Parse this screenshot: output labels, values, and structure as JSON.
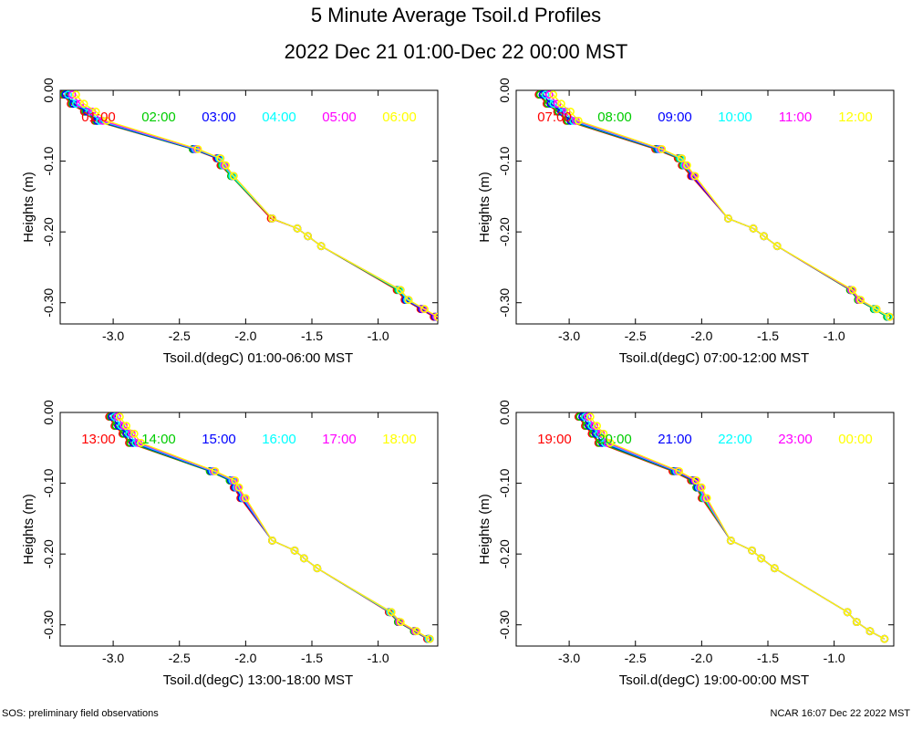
{
  "title": "5 Minute Average Tsoil.d Profiles",
  "subtitle": "2022 Dec 21 01:00-Dec 22 00:00 MST",
  "footer_left": "SOS: preliminary field observations",
  "footer_right": "NCAR 16:07 Dec 22 2022 MST",
  "chart_data": [
    {
      "type": "line",
      "xlabel": "Tsoil.d(degC) 01:00-06:00 MST",
      "ylabel": "Heights (m)",
      "xlim": [
        -3.4,
        -0.55
      ],
      "ylim": [
        -0.33,
        0.0
      ],
      "x_ticks": [
        "-3.0",
        "-2.5",
        "-2.0",
        "-1.5",
        "-1.0"
      ],
      "y_ticks": [
        "0.00",
        "-0.10",
        "-0.20",
        "-0.30"
      ],
      "heights": [
        -0.006,
        -0.019,
        -0.03,
        -0.043,
        -0.083,
        -0.096,
        -0.106,
        -0.121,
        -0.181,
        -0.195,
        -0.206,
        -0.22,
        -0.282,
        -0.296,
        -0.309,
        -0.32
      ],
      "series": [
        {
          "name": "01:00",
          "color": "#ff0000",
          "values": [
            -3.38,
            -3.32,
            -3.22,
            -3.14,
            -2.4,
            -2.22,
            -2.19,
            -2.11,
            -1.81,
            -1.61,
            -1.53,
            -1.43,
            -0.86,
            -0.8,
            -0.68,
            -0.58
          ]
        },
        {
          "name": "02:00",
          "color": "#00cc00",
          "values": [
            -3.37,
            -3.31,
            -3.21,
            -3.13,
            -2.4,
            -2.21,
            -2.18,
            -2.11,
            -1.8,
            -1.61,
            -1.53,
            -1.43,
            -0.85,
            -0.79,
            -0.67,
            -0.57
          ]
        },
        {
          "name": "03:00",
          "color": "#0000ff",
          "values": [
            -3.36,
            -3.3,
            -3.2,
            -3.12,
            -2.39,
            -2.21,
            -2.17,
            -2.1,
            -1.8,
            -1.61,
            -1.53,
            -1.43,
            -0.84,
            -0.79,
            -0.67,
            -0.57
          ]
        },
        {
          "name": "04:00",
          "color": "#00ffff",
          "values": [
            -3.34,
            -3.28,
            -3.18,
            -3.1,
            -2.38,
            -2.2,
            -2.17,
            -2.1,
            -1.8,
            -1.61,
            -1.53,
            -1.43,
            -0.84,
            -0.78,
            -0.66,
            -0.56
          ]
        },
        {
          "name": "05:00",
          "color": "#ff00ff",
          "values": [
            -3.31,
            -3.25,
            -3.16,
            -3.08,
            -2.37,
            -2.19,
            -2.16,
            -2.09,
            -1.8,
            -1.61,
            -1.53,
            -1.43,
            -0.83,
            -0.77,
            -0.66,
            -0.56
          ]
        },
        {
          "name": "06:00",
          "color": "#ffff00",
          "values": [
            -3.28,
            -3.22,
            -3.13,
            -3.05,
            -2.36,
            -2.19,
            -2.15,
            -2.09,
            -1.8,
            -1.61,
            -1.53,
            -1.43,
            -0.83,
            -0.77,
            -0.65,
            -0.55
          ]
        }
      ]
    },
    {
      "type": "line",
      "xlabel": "Tsoil.d(degC) 07:00-12:00 MST",
      "ylabel": "Heights (m)",
      "xlim": [
        -3.4,
        -0.55
      ],
      "ylim": [
        -0.33,
        0.0
      ],
      "x_ticks": [
        "-3.0",
        "-2.5",
        "-2.0",
        "-1.5",
        "-1.0"
      ],
      "y_ticks": [
        "0.00",
        "-0.10",
        "-0.20",
        "-0.30"
      ],
      "heights": [
        -0.006,
        -0.019,
        -0.03,
        -0.043,
        -0.083,
        -0.096,
        -0.106,
        -0.121,
        -0.181,
        -0.195,
        -0.206,
        -0.22,
        -0.282,
        -0.296,
        -0.309,
        -0.32
      ],
      "series": [
        {
          "name": "07:00",
          "color": "#ff0000",
          "values": [
            -3.23,
            -3.17,
            -3.09,
            -3.02,
            -2.35,
            -2.18,
            -2.15,
            -2.08,
            -1.8,
            -1.61,
            -1.53,
            -1.43,
            -0.88,
            -0.82,
            -0.7,
            -0.6
          ]
        },
        {
          "name": "08:00",
          "color": "#00cc00",
          "values": [
            -3.22,
            -3.16,
            -3.08,
            -3.01,
            -2.34,
            -2.17,
            -2.14,
            -2.07,
            -1.8,
            -1.61,
            -1.53,
            -1.43,
            -0.88,
            -0.82,
            -0.7,
            -0.6
          ]
        },
        {
          "name": "09:00",
          "color": "#0000ff",
          "values": [
            -3.2,
            -3.14,
            -3.06,
            -2.99,
            -2.33,
            -2.16,
            -2.13,
            -2.07,
            -1.8,
            -1.61,
            -1.53,
            -1.43,
            -0.87,
            -0.81,
            -0.69,
            -0.59
          ]
        },
        {
          "name": "10:00",
          "color": "#00ffff",
          "values": [
            -3.18,
            -3.12,
            -3.04,
            -2.97,
            -2.32,
            -2.16,
            -2.13,
            -2.06,
            -1.8,
            -1.61,
            -1.53,
            -1.43,
            -0.87,
            -0.81,
            -0.69,
            -0.59
          ]
        },
        {
          "name": "11:00",
          "color": "#ff00ff",
          "values": [
            -3.15,
            -3.09,
            -3.02,
            -2.95,
            -2.31,
            -2.15,
            -2.12,
            -2.06,
            -1.8,
            -1.61,
            -1.53,
            -1.43,
            -0.87,
            -0.81,
            -0.68,
            -0.58
          ]
        },
        {
          "name": "12:00",
          "color": "#ffff00",
          "values": [
            -3.12,
            -3.06,
            -2.99,
            -2.93,
            -2.3,
            -2.15,
            -2.11,
            -2.05,
            -1.8,
            -1.61,
            -1.53,
            -1.43,
            -0.86,
            -0.8,
            -0.68,
            -0.58
          ]
        }
      ]
    },
    {
      "type": "line",
      "xlabel": "Tsoil.d(degC) 13:00-18:00 MST",
      "ylabel": "Heights (m)",
      "xlim": [
        -3.4,
        -0.55
      ],
      "ylim": [
        -0.33,
        0.0
      ],
      "x_ticks": [
        "-3.0",
        "-2.5",
        "-2.0",
        "-1.5",
        "-1.0"
      ],
      "y_ticks": [
        "0.00",
        "-0.10",
        "-0.20",
        "-0.30"
      ],
      "heights": [
        -0.006,
        -0.019,
        -0.03,
        -0.043,
        -0.083,
        -0.096,
        -0.106,
        -0.121,
        -0.181,
        -0.195,
        -0.206,
        -0.22,
        -0.282,
        -0.296,
        -0.309,
        -0.32
      ],
      "series": [
        {
          "name": "13:00",
          "color": "#ff0000",
          "values": [
            -3.03,
            -2.99,
            -2.93,
            -2.88,
            -2.27,
            -2.12,
            -2.09,
            -2.04,
            -1.8,
            -1.63,
            -1.56,
            -1.46,
            -0.92,
            -0.85,
            -0.73,
            -0.63
          ]
        },
        {
          "name": "14:00",
          "color": "#00cc00",
          "values": [
            -3.02,
            -2.98,
            -2.92,
            -2.87,
            -2.27,
            -2.12,
            -2.08,
            -2.03,
            -1.8,
            -1.63,
            -1.56,
            -1.46,
            -0.91,
            -0.85,
            -0.73,
            -0.62
          ]
        },
        {
          "name": "15:00",
          "color": "#0000ff",
          "values": [
            -3.01,
            -2.96,
            -2.9,
            -2.85,
            -2.26,
            -2.11,
            -2.08,
            -2.03,
            -1.8,
            -1.63,
            -1.56,
            -1.46,
            -0.91,
            -0.84,
            -0.72,
            -0.62
          ]
        },
        {
          "name": "16:00",
          "color": "#00ffff",
          "values": [
            -2.99,
            -2.94,
            -2.88,
            -2.83,
            -2.25,
            -2.1,
            -2.07,
            -2.02,
            -1.8,
            -1.63,
            -1.56,
            -1.46,
            -0.91,
            -0.84,
            -0.72,
            -0.62
          ]
        },
        {
          "name": "17:00",
          "color": "#ff00ff",
          "values": [
            -2.97,
            -2.92,
            -2.86,
            -2.81,
            -2.24,
            -2.09,
            -2.06,
            -2.01,
            -1.8,
            -1.63,
            -1.56,
            -1.46,
            -0.9,
            -0.84,
            -0.72,
            -0.61
          ]
        },
        {
          "name": "18:00",
          "color": "#ffff00",
          "values": [
            -2.95,
            -2.9,
            -2.84,
            -2.79,
            -2.23,
            -2.08,
            -2.05,
            -2.0,
            -1.8,
            -1.63,
            -1.56,
            -1.46,
            -0.9,
            -0.83,
            -0.71,
            -0.61
          ]
        }
      ]
    },
    {
      "type": "line",
      "xlabel": "Tsoil.d(degC) 19:00-00:00 MST",
      "ylabel": "Heights (m)",
      "xlim": [
        -3.4,
        -0.55
      ],
      "ylim": [
        -0.33,
        0.0
      ],
      "x_ticks": [
        "-3.0",
        "-2.5",
        "-2.0",
        "-1.5",
        "-1.0"
      ],
      "y_ticks": [
        "0.00",
        "-0.10",
        "-0.20",
        "-0.30"
      ],
      "heights": [
        -0.006,
        -0.019,
        -0.03,
        -0.043,
        -0.083,
        -0.096,
        -0.106,
        -0.121,
        -0.181,
        -0.195,
        -0.206,
        -0.22,
        -0.282,
        -0.296,
        -0.309,
        -0.32
      ],
      "series": [
        {
          "name": "19:00",
          "color": "#ff0000",
          "values": [
            -2.93,
            -2.88,
            -2.83,
            -2.78,
            -2.22,
            -2.08,
            -2.04,
            -2.0,
            -1.78,
            -1.62,
            -1.55,
            -1.45,
            -0.9,
            -0.83,
            -0.73,
            -0.62
          ]
        },
        {
          "name": "20:00",
          "color": "#00cc00",
          "values": [
            -2.92,
            -2.87,
            -2.82,
            -2.77,
            -2.21,
            -2.07,
            -2.04,
            -1.99,
            -1.78,
            -1.62,
            -1.55,
            -1.45,
            -0.9,
            -0.83,
            -0.73,
            -0.62
          ]
        },
        {
          "name": "21:00",
          "color": "#0000ff",
          "values": [
            -2.9,
            -2.85,
            -2.8,
            -2.75,
            -2.2,
            -2.06,
            -2.03,
            -1.98,
            -1.78,
            -1.62,
            -1.55,
            -1.45,
            -0.9,
            -0.83,
            -0.73,
            -0.62
          ]
        },
        {
          "name": "22:00",
          "color": "#00ffff",
          "values": [
            -2.88,
            -2.83,
            -2.78,
            -2.73,
            -2.19,
            -2.05,
            -2.02,
            -1.98,
            -1.78,
            -1.62,
            -1.55,
            -1.45,
            -0.9,
            -0.83,
            -0.73,
            -0.62
          ]
        },
        {
          "name": "23:00",
          "color": "#ff00ff",
          "values": [
            -2.86,
            -2.81,
            -2.76,
            -2.71,
            -2.18,
            -2.05,
            -2.01,
            -1.97,
            -1.78,
            -1.62,
            -1.55,
            -1.45,
            -0.9,
            -0.83,
            -0.73,
            -0.62
          ]
        },
        {
          "name": "00:00",
          "color": "#ffff00",
          "values": [
            -2.84,
            -2.79,
            -2.74,
            -2.69,
            -2.17,
            -2.04,
            -2.0,
            -1.96,
            -1.78,
            -1.62,
            -1.55,
            -1.45,
            -0.9,
            -0.83,
            -0.73,
            -0.62
          ]
        }
      ]
    }
  ]
}
